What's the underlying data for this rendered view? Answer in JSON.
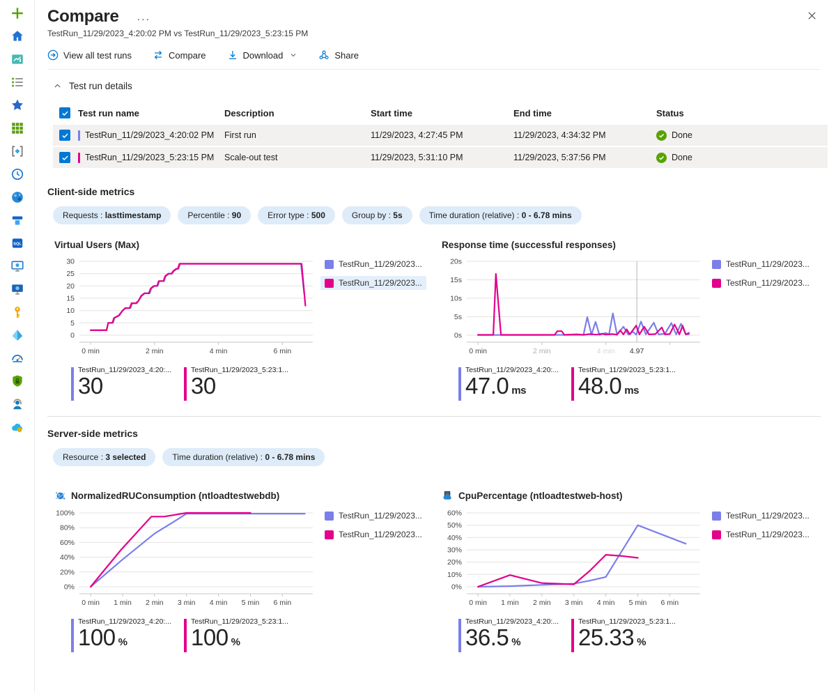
{
  "header": {
    "title": "Compare",
    "ellipsis": "...",
    "subtitle": "TestRun_11/29/2023_4:20:02 PM vs TestRun_11/29/2023_5:23:15 PM"
  },
  "toolbar": {
    "view_all": "View all test runs",
    "compare": "Compare",
    "download": "Download",
    "share": "Share"
  },
  "test_run_details": {
    "section_label": "Test run details",
    "columns": [
      "Test run name",
      "Description",
      "Start time",
      "End time",
      "Status"
    ],
    "rows": [
      {
        "name": "TestRun_11/29/2023_4:20:02 PM",
        "description": "First run",
        "start": "11/29/2023, 4:27:45 PM",
        "end": "11/29/2023, 4:34:32 PM",
        "status": "Done"
      },
      {
        "name": "TestRun_11/29/2023_5:23:15 PM",
        "description": "Scale-out test",
        "start": "11/29/2023, 5:31:10 PM",
        "end": "11/29/2023, 5:37:56 PM",
        "status": "Done"
      }
    ]
  },
  "client_side": {
    "heading": "Client-side metrics",
    "filters": [
      {
        "label": "Requests :",
        "value": "lasttimestamp"
      },
      {
        "label": "Percentile :",
        "value": "90"
      },
      {
        "label": "Error type :",
        "value": "500"
      },
      {
        "label": "Group by :",
        "value": "5s"
      },
      {
        "label": "Time duration (relative) :",
        "value": "0 - 6.78 mins"
      }
    ]
  },
  "server_side": {
    "heading": "Server-side metrics",
    "filters": [
      {
        "label": "Resource :",
        "value": "3 selected"
      },
      {
        "label": "Time duration (relative) :",
        "value": "0 - 6.78 mins"
      }
    ]
  },
  "colors": {
    "blue": "#7b7fe9",
    "pink": "#e3008c",
    "accent": "#0078d4",
    "status_green": "#57a300",
    "pill_bg": "#deecf9"
  },
  "sidebar": {
    "icons": [
      "create-resource",
      "home",
      "dashboard",
      "all-services",
      "favorites",
      "all-resources",
      "resource-groups",
      "recent",
      "app-services",
      "storage-accounts",
      "sql-databases",
      "virtual-machines",
      "virtual-machines-classic",
      "key-vaults",
      "azure-ad",
      "monitor",
      "security-center",
      "help-support",
      "cost-management"
    ]
  },
  "chart_data": [
    {
      "type": "line",
      "title": "Virtual Users (Max)",
      "ylim": [
        0,
        30
      ],
      "xlim": [
        -0.35,
        6.95
      ],
      "yticks": [
        {
          "v": 0,
          "label": "0"
        },
        {
          "v": 5,
          "label": "5"
        },
        {
          "v": 10,
          "label": "10"
        },
        {
          "v": 15,
          "label": "15"
        },
        {
          "v": 20,
          "label": "20"
        },
        {
          "v": 25,
          "label": "25"
        },
        {
          "v": 30,
          "label": "30"
        }
      ],
      "xticks": [
        {
          "v": 0,
          "label": "0 min"
        },
        {
          "v": 2,
          "label": "2 min"
        },
        {
          "v": 4,
          "label": "4 min"
        },
        {
          "v": 6,
          "label": "6 min"
        }
      ],
      "legend": [
        {
          "name": "TestRun_11/29/2023...",
          "color": "blue",
          "highlight": false
        },
        {
          "name": "TestRun_11/29/2023...",
          "color": "pink",
          "highlight": true
        }
      ],
      "series": [
        {
          "name": "TestRun_11/29/2023_4:20:02 PM",
          "color": "#7b7fe9",
          "points": [
            [
              0,
              2
            ],
            [
              0.5,
              2
            ],
            [
              0.55,
              5
            ],
            [
              0.7,
              5
            ],
            [
              0.75,
              7
            ],
            [
              0.9,
              8
            ],
            [
              1.0,
              10
            ],
            [
              1.1,
              11
            ],
            [
              1.25,
              11
            ],
            [
              1.3,
              13
            ],
            [
              1.45,
              13
            ],
            [
              1.5,
              14
            ],
            [
              1.6,
              16
            ],
            [
              1.7,
              17
            ],
            [
              1.85,
              17
            ],
            [
              1.9,
              19
            ],
            [
              2.0,
              20
            ],
            [
              2.1,
              20
            ],
            [
              2.15,
              22
            ],
            [
              2.3,
              22
            ],
            [
              2.35,
              24
            ],
            [
              2.45,
              25
            ],
            [
              2.55,
              25
            ],
            [
              2.6,
              26
            ],
            [
              2.7,
              27
            ],
            [
              2.75,
              27
            ],
            [
              2.8,
              29
            ],
            [
              6.58,
              29
            ],
            [
              6.68,
              17
            ]
          ]
        },
        {
          "name": "TestRun_11/29/2023_5:23:15 PM",
          "color": "#e3008c",
          "points": [
            [
              0,
              2
            ],
            [
              0.5,
              2
            ],
            [
              0.55,
              5
            ],
            [
              0.68,
              5
            ],
            [
              0.73,
              7
            ],
            [
              0.88,
              8
            ],
            [
              1.0,
              10
            ],
            [
              1.08,
              11
            ],
            [
              1.22,
              11
            ],
            [
              1.28,
              13
            ],
            [
              1.42,
              13
            ],
            [
              1.5,
              14
            ],
            [
              1.58,
              16
            ],
            [
              1.68,
              17
            ],
            [
              1.82,
              17
            ],
            [
              1.88,
              19
            ],
            [
              1.98,
              20
            ],
            [
              2.08,
              20
            ],
            [
              2.13,
              22
            ],
            [
              2.28,
              22
            ],
            [
              2.33,
              24
            ],
            [
              2.43,
              25
            ],
            [
              2.53,
              25
            ],
            [
              2.58,
              26
            ],
            [
              2.68,
              27
            ],
            [
              2.73,
              27
            ],
            [
              2.78,
              29
            ],
            [
              6.6,
              29
            ],
            [
              6.72,
              12
            ]
          ]
        }
      ],
      "stats": [
        {
          "label": "TestRun_11/29/2023_4:20:...",
          "value": "30",
          "unit": ""
        },
        {
          "label": "TestRun_11/29/2023_5:23:1...",
          "value": "30",
          "unit": ""
        }
      ]
    },
    {
      "type": "line",
      "title": "Response time (successful responses)",
      "ylim": [
        0,
        20
      ],
      "xlim": [
        -0.35,
        6.95
      ],
      "yticks": [
        {
          "v": 0,
          "label": "0s"
        },
        {
          "v": 5,
          "label": "5s"
        },
        {
          "v": 10,
          "label": "10s"
        },
        {
          "v": 15,
          "label": "15s"
        },
        {
          "v": 20,
          "label": "20s"
        }
      ],
      "xticks": [
        {
          "v": 0,
          "label": "0 min",
          "fade": 0
        },
        {
          "v": 2,
          "label": "2 min",
          "fade": 1
        },
        {
          "v": 4,
          "label": "4 min",
          "fade": 2
        },
        {
          "v": 6,
          "label": "",
          "fade": 0
        }
      ],
      "cursor": {
        "x": 4.97,
        "label": "4.97"
      },
      "legend": [
        {
          "name": "TestRun_11/29/2023...",
          "color": "blue",
          "highlight": false
        },
        {
          "name": "TestRun_11/29/2023...",
          "color": "pink",
          "highlight": false
        }
      ],
      "series": [
        {
          "name": "TestRun_11/29/2023_4:20:02 PM",
          "color": "#7b7fe9",
          "points": [
            [
              0,
              0.05
            ],
            [
              3.3,
              0.1
            ],
            [
              3.42,
              4.9
            ],
            [
              3.55,
              0.15
            ],
            [
              3.68,
              3.6
            ],
            [
              3.8,
              0.1
            ],
            [
              4.0,
              0.6
            ],
            [
              4.1,
              0.2
            ],
            [
              4.22,
              5.9
            ],
            [
              4.35,
              0.15
            ],
            [
              4.55,
              2.3
            ],
            [
              4.7,
              0.2
            ],
            [
              4.85,
              0.9
            ],
            [
              4.95,
              0.15
            ],
            [
              5.1,
              3.7
            ],
            [
              5.25,
              0.2
            ],
            [
              5.5,
              3.4
            ],
            [
              5.65,
              0.2
            ],
            [
              5.85,
              0.4
            ],
            [
              6.05,
              3.3
            ],
            [
              6.2,
              0.2
            ],
            [
              6.35,
              3.1
            ],
            [
              6.5,
              0.3
            ],
            [
              6.6,
              0.2
            ]
          ]
        },
        {
          "name": "TestRun_11/29/2023_5:23:15 PM",
          "color": "#e3008c",
          "points": [
            [
              0,
              0.1
            ],
            [
              0.48,
              0.1
            ],
            [
              0.56,
              16.6
            ],
            [
              0.72,
              0.1
            ],
            [
              2.4,
              0.1
            ],
            [
              2.48,
              1.1
            ],
            [
              2.62,
              1.1
            ],
            [
              2.7,
              0.1
            ],
            [
              3.1,
              0.25
            ],
            [
              3.3,
              0.1
            ],
            [
              3.5,
              0.3
            ],
            [
              3.7,
              0.15
            ],
            [
              3.9,
              0.4
            ],
            [
              4.0,
              0.15
            ],
            [
              4.2,
              0.3
            ],
            [
              4.35,
              0.15
            ],
            [
              4.45,
              1.3
            ],
            [
              4.55,
              0.2
            ],
            [
              4.65,
              1.6
            ],
            [
              4.75,
              0.2
            ],
            [
              4.95,
              2.6
            ],
            [
              5.05,
              0.2
            ],
            [
              5.2,
              2.3
            ],
            [
              5.35,
              0.2
            ],
            [
              5.55,
              0.3
            ],
            [
              5.75,
              2.1
            ],
            [
              5.85,
              0.2
            ],
            [
              6.0,
              0.3
            ],
            [
              6.15,
              2.9
            ],
            [
              6.3,
              0.2
            ],
            [
              6.4,
              2.6
            ],
            [
              6.5,
              0.2
            ],
            [
              6.6,
              0.6
            ]
          ]
        }
      ],
      "stats": [
        {
          "label": "TestRun_11/29/2023_4:20:...",
          "value": "47.0",
          "unit": "ms"
        },
        {
          "label": "TestRun_11/29/2023_5:23:1...",
          "value": "48.0",
          "unit": "ms"
        }
      ]
    },
    {
      "type": "line",
      "title": "NormalizedRUConsumption (ntloadtestwebdb)",
      "ylim": [
        0,
        100
      ],
      "xlim": [
        -0.35,
        6.95
      ],
      "yticks": [
        {
          "v": 0,
          "label": "0%"
        },
        {
          "v": 20,
          "label": "20%"
        },
        {
          "v": 40,
          "label": "40%"
        },
        {
          "v": 60,
          "label": "60%"
        },
        {
          "v": 80,
          "label": "80%"
        },
        {
          "v": 100,
          "label": "100%"
        }
      ],
      "xticks": [
        {
          "v": 0,
          "label": "0 min"
        },
        {
          "v": 1,
          "label": "1 min"
        },
        {
          "v": 2,
          "label": "2 min"
        },
        {
          "v": 3,
          "label": "3 min"
        },
        {
          "v": 4,
          "label": "4 min"
        },
        {
          "v": 5,
          "label": "5 min"
        },
        {
          "v": 6,
          "label": "6 min"
        }
      ],
      "legend": [
        {
          "name": "TestRun_11/29/2023...",
          "color": "blue",
          "highlight": false
        },
        {
          "name": "TestRun_11/29/2023...",
          "color": "pink",
          "highlight": false
        }
      ],
      "series": [
        {
          "name": "TestRun_11/29/2023_4:20:02 PM",
          "color": "#7b7fe9",
          "points": [
            [
              0,
              0
            ],
            [
              1,
              37
            ],
            [
              2,
              72
            ],
            [
              2.6,
              88
            ],
            [
              3,
              99
            ],
            [
              6.7,
              99
            ]
          ]
        },
        {
          "name": "TestRun_11/29/2023_5:23:15 PM",
          "color": "#e3008c",
          "points": [
            [
              0,
              0
            ],
            [
              0.95,
              50
            ],
            [
              1.9,
              95
            ],
            [
              2.3,
              95
            ],
            [
              3,
              100
            ],
            [
              5,
              100
            ]
          ]
        }
      ],
      "stats": [
        {
          "label": "TestRun_11/29/2023_4:20:...",
          "value": "100",
          "unit": "%"
        },
        {
          "label": "TestRun_11/29/2023_5:23:1...",
          "value": "100",
          "unit": "%"
        }
      ]
    },
    {
      "type": "line",
      "title": "CpuPercentage (ntloadtestweb-host)",
      "ylim": [
        0,
        60
      ],
      "xlim": [
        -0.35,
        6.95
      ],
      "yticks": [
        {
          "v": 0,
          "label": "0%"
        },
        {
          "v": 10,
          "label": "10%"
        },
        {
          "v": 20,
          "label": "20%"
        },
        {
          "v": 30,
          "label": "30%"
        },
        {
          "v": 40,
          "label": "40%"
        },
        {
          "v": 50,
          "label": "50%"
        },
        {
          "v": 60,
          "label": "60%"
        }
      ],
      "xticks": [
        {
          "v": 0,
          "label": "0 min"
        },
        {
          "v": 1,
          "label": "1 min"
        },
        {
          "v": 2,
          "label": "2 min"
        },
        {
          "v": 3,
          "label": "3 min"
        },
        {
          "v": 4,
          "label": "4 min"
        },
        {
          "v": 5,
          "label": "5 min"
        },
        {
          "v": 6,
          "label": "6 min"
        }
      ],
      "legend": [
        {
          "name": "TestRun_11/29/2023...",
          "color": "blue",
          "highlight": false
        },
        {
          "name": "TestRun_11/29/2023...",
          "color": "pink",
          "highlight": false
        }
      ],
      "series": [
        {
          "name": "TestRun_11/29/2023_4:20:02 PM",
          "color": "#7b7fe9",
          "points": [
            [
              0,
              0
            ],
            [
              1,
              0.5
            ],
            [
              2,
              1.5
            ],
            [
              3,
              2.5
            ],
            [
              3.5,
              5
            ],
            [
              4,
              8
            ],
            [
              5,
              50
            ],
            [
              6.5,
              35
            ]
          ]
        },
        {
          "name": "TestRun_11/29/2023_5:23:15 PM",
          "color": "#e3008c",
          "points": [
            [
              0,
              0
            ],
            [
              1,
              9.5
            ],
            [
              2,
              3
            ],
            [
              2.5,
              2.5
            ],
            [
              3,
              2
            ],
            [
              3.5,
              13
            ],
            [
              4,
              26
            ],
            [
              4.5,
              25
            ],
            [
              5,
              23.5
            ]
          ]
        }
      ],
      "stats": [
        {
          "label": "TestRun_11/29/2023_4:20:...",
          "value": "36.5",
          "unit": "%"
        },
        {
          "label": "TestRun_11/29/2023_5:23:1...",
          "value": "25.33",
          "unit": "%"
        }
      ]
    }
  ]
}
